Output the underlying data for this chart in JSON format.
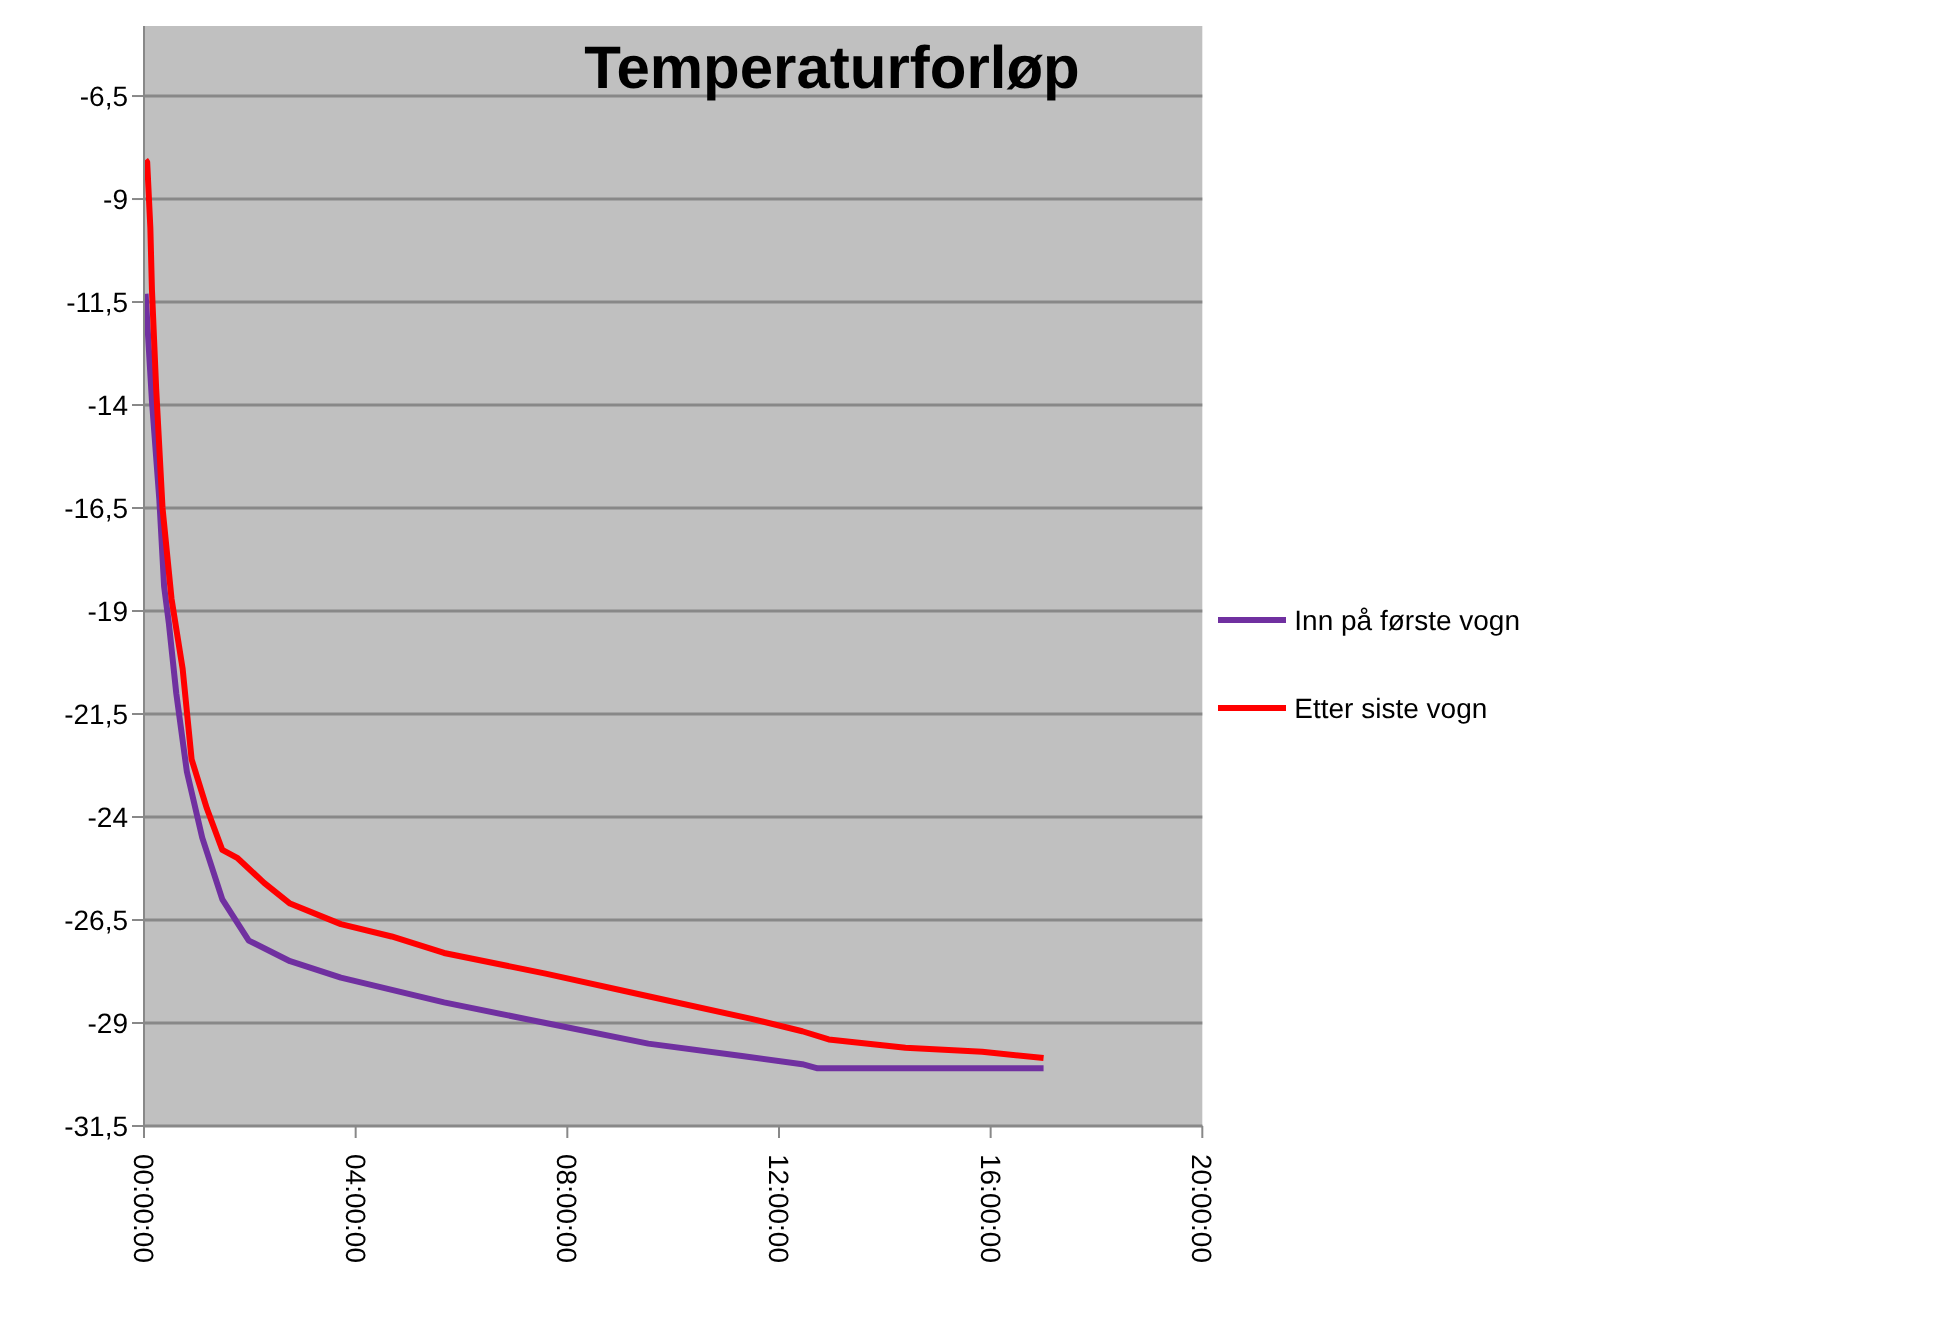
{
  "chart_data": {
    "type": "line",
    "title": "Temperaturforløp",
    "xlim": [
      0,
      20
    ],
    "xticks": [
      {
        "value": 0,
        "label": "00:00:00"
      },
      {
        "value": 4,
        "label": "04:00:00"
      },
      {
        "value": 8,
        "label": "08:00:00"
      },
      {
        "value": 12,
        "label": "12:00:00"
      },
      {
        "value": 16,
        "label": "16:00:00"
      },
      {
        "value": 20,
        "label": "20:00:00"
      }
    ],
    "ylim": [
      -31.5,
      -4.8
    ],
    "yticks": [
      {
        "value": -31.5,
        "label": "-31,5"
      },
      {
        "value": -29,
        "label": "-29"
      },
      {
        "value": -26.5,
        "label": "-26,5"
      },
      {
        "value": -24,
        "label": "-24"
      },
      {
        "value": -21.5,
        "label": "-21,5"
      },
      {
        "value": -19,
        "label": "-19"
      },
      {
        "value": -16.5,
        "label": "-16,5"
      },
      {
        "value": -14,
        "label": "-14"
      },
      {
        "value": -11.5,
        "label": "-11,5"
      },
      {
        "value": -9,
        "label": "-9"
      },
      {
        "value": -6.5,
        "label": "-6,5"
      }
    ],
    "grid": "y",
    "legend": "right",
    "marker": "none",
    "line_style": "solid",
    "series": [
      {
        "name": "Inn på første vogn",
        "color": "#7030a0",
        "x": [
          0.03,
          0.15,
          0.29,
          0.38,
          0.47,
          0.61,
          0.81,
          1.1,
          1.48,
          1.98,
          2.76,
          3.72,
          5.67,
          7.59,
          9.53,
          11.3,
          12.44,
          12.73,
          14.39,
          15.84,
          17.0
        ],
        "values": [
          -11.3,
          -13.9,
          -16.3,
          -18.4,
          -19.3,
          -21.0,
          -22.9,
          -24.5,
          -26.0,
          -27.0,
          -27.5,
          -27.9,
          -28.5,
          -29.0,
          -29.5,
          -29.8,
          -30.0,
          -30.1,
          -30.1,
          -30.1,
          -30.1
        ]
      },
      {
        "name": "Etter siste vogn",
        "color": "#ff0000",
        "x": [
          0.03,
          0.06,
          0.12,
          0.15,
          0.23,
          0.35,
          0.52,
          0.73,
          0.9,
          1.19,
          1.48,
          1.77,
          2.27,
          2.76,
          3.72,
          4.68,
          5.67,
          7.59,
          9.53,
          11.48,
          12.44,
          12.94,
          14.39,
          15.84,
          17.0
        ],
        "values": [
          -8.05,
          -8.1,
          -9.7,
          -11.2,
          -13.6,
          -16.5,
          -18.7,
          -20.4,
          -22.6,
          -23.8,
          -24.8,
          -25.0,
          -25.6,
          -26.1,
          -26.6,
          -26.9,
          -27.3,
          -27.8,
          -28.35,
          -28.9,
          -29.2,
          -29.4,
          -29.6,
          -29.7,
          -29.85
        ]
      }
    ]
  }
}
